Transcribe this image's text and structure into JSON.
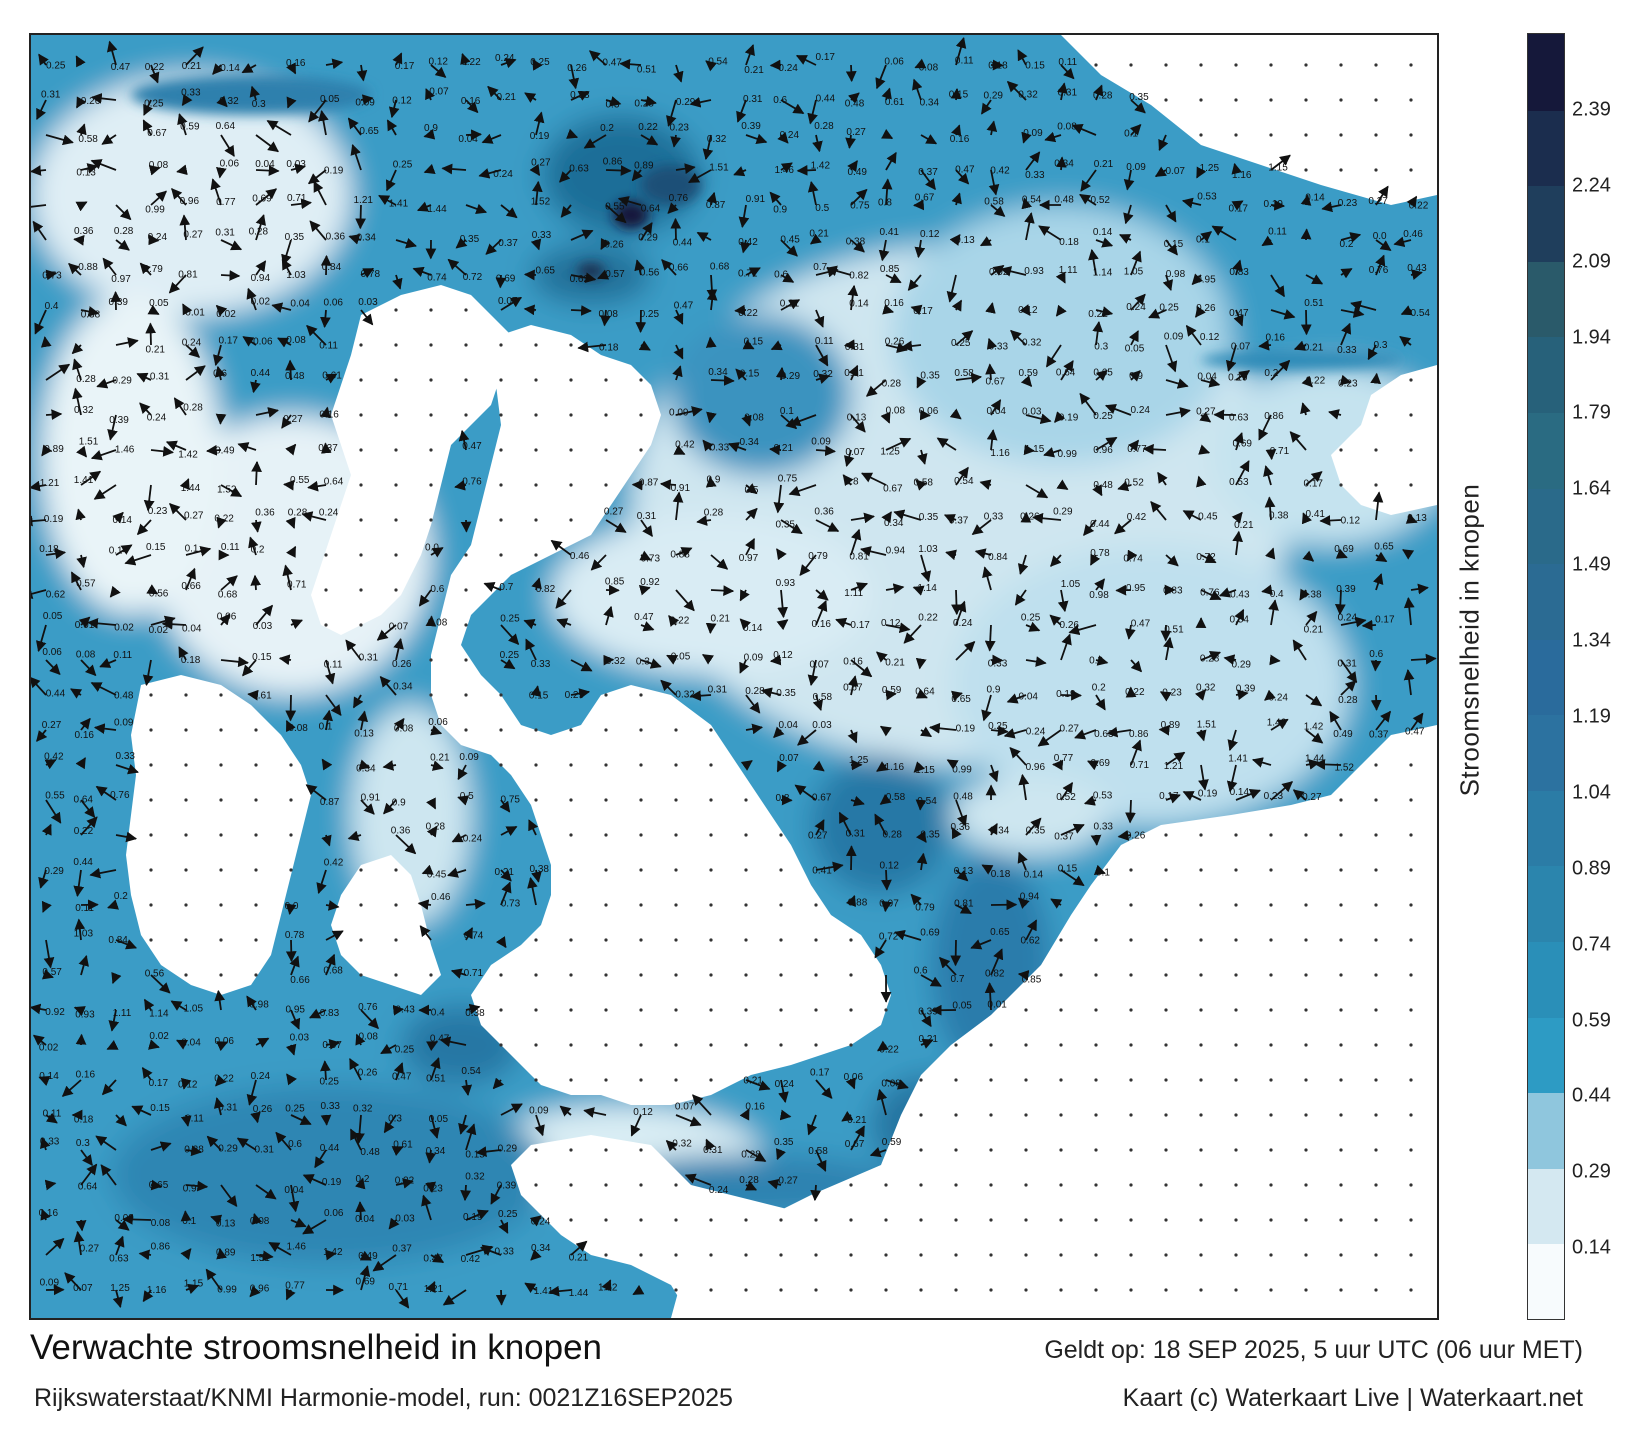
{
  "title": "Verwachte stroomsnelheid in knopen",
  "model_run": "Rijkswaterstaat/KNMI Harmonie-model, run: 0021Z16SEP2025",
  "valid_time": "Geldt op: 18 SEP 2025, 5 uur UTC (06 uur MET)",
  "credit": "Kaart (c) Waterkaart Live | Waterkaart.net",
  "colorbar": {
    "label": "Stroomsnelheid in knopen",
    "ticks": [
      "0.14",
      "0.29",
      "0.44",
      "0.59",
      "0.74",
      "0.89",
      "1.04",
      "1.19",
      "1.34",
      "1.49",
      "1.64",
      "1.79",
      "1.94",
      "2.09",
      "2.24",
      "2.39"
    ],
    "tick_values": [
      0.14,
      0.29,
      0.44,
      0.59,
      0.74,
      0.89,
      1.04,
      1.19,
      1.34,
      1.49,
      1.64,
      1.79,
      1.94,
      2.09,
      2.24,
      2.39
    ],
    "range": [
      0,
      2.54
    ],
    "colors": [
      "#f7fbfd",
      "#d4e8f1",
      "#8fc6dd",
      "#2d9bc4",
      "#2a8fb8",
      "#2b85ad",
      "#2b7ca6",
      "#2c72a0",
      "#2a6b9c",
      "#2b6b93",
      "#2a6a8a",
      "#2a6b82",
      "#27617a",
      "#2a5a6a",
      "#1f3e5c",
      "#1b2d4e",
      "#15183a"
    ]
  },
  "map": {
    "sea_color": "#2b86b3",
    "land_color": "#ffffff",
    "grid_dot_color": "#333333",
    "arrow_color": "#111111",
    "speed_labels": [
      "0.25",
      "0.47",
      "0.22",
      "0.21",
      "0.14",
      "0.16",
      "0.17",
      "0.12",
      "0.22",
      "0.24",
      "0.25",
      "0.26",
      "0.47",
      "0.51",
      "0.54",
      "0.21",
      "0.24",
      "0.17",
      "0.06",
      "0.08",
      "0.11",
      "0.18",
      "0.15",
      "0.11",
      "0.31",
      "0.26",
      "0.25",
      "0.33",
      "0.32",
      "0.3",
      "0.05",
      "0.09",
      "0.12",
      "0.07",
      "0.16",
      "0.21",
      "0.33",
      "0.3",
      "0.28",
      "0.29",
      "0.31",
      "0.6",
      "0.44",
      "0.48",
      "0.61",
      "0.34",
      "0.15",
      "0.29",
      "0.32",
      "0.31",
      "0.28",
      "0.35",
      "0.58",
      "0.67",
      "0.59",
      "0.64",
      "0.65",
      "0.9",
      "0.04",
      "0.19",
      "0.2",
      "0.22",
      "0.23",
      "0.32",
      "0.39",
      "0.24",
      "0.28",
      "0.27",
      "0.16",
      "0.09",
      "0.08",
      "0.1",
      "0.13",
      "0.08",
      "0.06",
      "0.04",
      "0.03",
      "0.19",
      "0.25",
      "0.24",
      "0.27",
      "0.63",
      "0.86",
      "0.89",
      "1.51",
      "1.46",
      "1.42",
      "0.49",
      "0.37",
      "0.47",
      "0.42",
      "0.33",
      "0.34",
      "0.21",
      "0.09",
      "0.07",
      "1.25",
      "1.16",
      "1.15",
      "0.99",
      "0.96",
      "0.77",
      "0.69",
      "0.71",
      "1.21",
      "1.41",
      "1.44",
      "1.52",
      "0.55",
      "0.64",
      "0.76",
      "0.87",
      "0.91",
      "0.9",
      "0.5",
      "0.75",
      "0.8",
      "0.67",
      "0.58",
      "0.54",
      "0.48",
      "0.52",
      "0.53",
      "0.17",
      "0.19",
      "0.14",
      "0.23",
      "0.27",
      "0.22",
      "0.36",
      "0.28",
      "0.24",
      "0.27",
      "0.31",
      "0.28",
      "0.35",
      "0.36",
      "0.34",
      "0.35",
      "0.37",
      "0.33",
      "0.26",
      "0.29",
      "0.44",
      "0.42",
      "0.45",
      "0.21",
      "0.38",
      "0.41",
      "0.12",
      "0.13",
      "0.18",
      "0.14",
      "0.15",
      "0.1",
      "0.11",
      "0.2",
      "0.0",
      "0.46",
      "0.73",
      "0.88",
      "0.97",
      "0.79",
      "0.81",
      "0.94",
      "1.03",
      "0.84",
      "0.78",
      "0.74",
      "0.72",
      "0.69",
      "0.65",
      "0.62",
      "0.57",
      "0.56",
      "0.66",
      "0.68",
      "0.71",
      "0.6",
      "0.7",
      "0.82",
      "0.85",
      "0.92",
      "0.93",
      "1.11",
      "1.14",
      "1.05",
      "0.98",
      "0.95",
      "0.83",
      "0.76",
      "0.43",
      "0.4",
      "0.38",
      "0.39",
      "0.05",
      "0.01",
      "0.02",
      "0.02",
      "0.04",
      "0.06",
      "0.03",
      "0.07",
      "0.08"
    ]
  }
}
